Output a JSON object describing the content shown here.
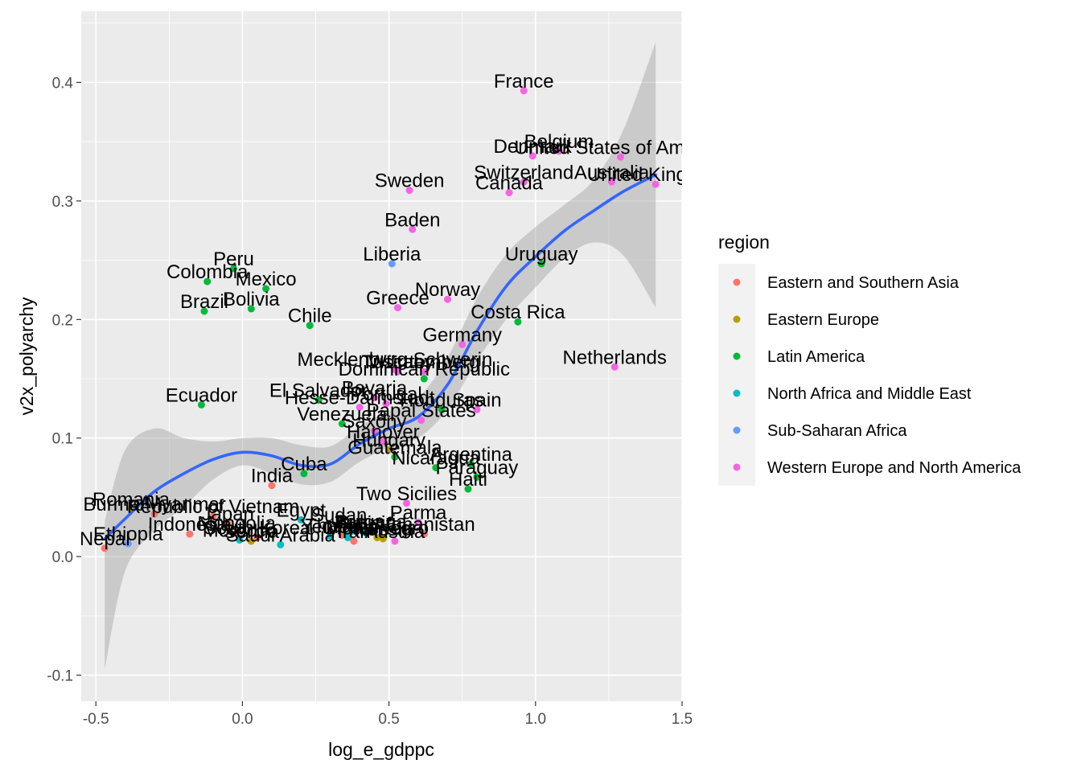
{
  "chart_data": {
    "type": "scatter",
    "xlabel": "log_e_gdppc",
    "ylabel": "v2x_polyarchy",
    "xlim": [
      -0.55,
      1.5
    ],
    "ylim": [
      -0.122,
      0.46
    ],
    "x_ticks": [
      -0.5,
      0.0,
      0.5,
      1.0,
      1.5
    ],
    "x_tick_labels": [
      "-0.5",
      "0.0",
      "0.5",
      "1.0",
      "1.5"
    ],
    "y_ticks": [
      -0.1,
      0.0,
      0.1,
      0.2,
      0.3,
      0.4
    ],
    "y_tick_labels": [
      "-0.1",
      "0.0",
      "0.1",
      "0.2",
      "0.3",
      "0.4"
    ],
    "grid": true,
    "legend_position": "right",
    "legend": {
      "title": "region",
      "entries": [
        {
          "name": "Eastern and Southern Asia",
          "color": "#F8766D"
        },
        {
          "name": "Eastern Europe",
          "color": "#B79F00"
        },
        {
          "name": "Latin America",
          "color": "#00BA38"
        },
        {
          "name": "North Africa and Middle East",
          "color": "#00BFC4"
        },
        {
          "name": "Sub-Saharan Africa",
          "color": "#619CFF"
        },
        {
          "name": "Western Europe and North America",
          "color": "#F564E3"
        }
      ]
    },
    "smooth": {
      "method": "loess",
      "color": "#3366FF",
      "x": [
        -0.47,
        -0.4,
        -0.3,
        -0.2,
        -0.1,
        0.0,
        0.1,
        0.2,
        0.3,
        0.4,
        0.5,
        0.6,
        0.7,
        0.8,
        0.9,
        1.0,
        1.1,
        1.2,
        1.3,
        1.41
      ],
      "y": [
        0.015,
        0.032,
        0.055,
        0.07,
        0.082,
        0.088,
        0.085,
        0.077,
        0.078,
        0.095,
        0.108,
        0.118,
        0.145,
        0.19,
        0.228,
        0.253,
        0.275,
        0.292,
        0.308,
        0.322
      ],
      "upper": [
        0.03,
        0.09,
        0.108,
        0.1,
        0.097,
        0.1,
        0.1,
        0.094,
        0.093,
        0.11,
        0.123,
        0.134,
        0.168,
        0.218,
        0.255,
        0.278,
        0.297,
        0.318,
        0.36,
        0.434
      ],
      "lower": [
        -0.095,
        -0.012,
        0.022,
        0.042,
        0.065,
        0.077,
        0.07,
        0.061,
        0.063,
        0.08,
        0.092,
        0.1,
        0.124,
        0.165,
        0.2,
        0.227,
        0.252,
        0.265,
        0.254,
        0.21
      ]
    },
    "points": [
      {
        "label": "France",
        "x": 0.96,
        "y": 0.393,
        "region": 5
      },
      {
        "label": "Belgium",
        "x": 1.08,
        "y": 0.342,
        "region": 5
      },
      {
        "label": "Denmark",
        "x": 0.99,
        "y": 0.338,
        "region": 5
      },
      {
        "label": "United States of America",
        "x": 1.29,
        "y": 0.337,
        "region": 5
      },
      {
        "label": "Switzerland",
        "x": 0.96,
        "y": 0.316,
        "region": 5
      },
      {
        "label": "Australia",
        "x": 1.26,
        "y": 0.316,
        "region": 5
      },
      {
        "label": "United Kingdom",
        "x": 1.41,
        "y": 0.314,
        "region": 5
      },
      {
        "label": "Canada",
        "x": 0.91,
        "y": 0.307,
        "region": 5
      },
      {
        "label": "Sweden",
        "x": 0.57,
        "y": 0.309,
        "region": 5
      },
      {
        "label": "Baden",
        "x": 0.58,
        "y": 0.276,
        "region": 5
      },
      {
        "label": "Liberia",
        "x": 0.51,
        "y": 0.247,
        "region": 4
      },
      {
        "label": "Uruguay",
        "x": 1.02,
        "y": 0.247,
        "region": 2
      },
      {
        "label": "Peru",
        "x": -0.03,
        "y": 0.243,
        "region": 2
      },
      {
        "label": "Colombia",
        "x": -0.12,
        "y": 0.232,
        "region": 2
      },
      {
        "label": "Mexico",
        "x": 0.08,
        "y": 0.226,
        "region": 2
      },
      {
        "label": "Norway",
        "x": 0.7,
        "y": 0.217,
        "region": 5
      },
      {
        "label": "Greece",
        "x": 0.53,
        "y": 0.21,
        "region": 5
      },
      {
        "label": "Bolivia",
        "x": 0.03,
        "y": 0.209,
        "region": 2
      },
      {
        "label": "Brazil",
        "x": -0.13,
        "y": 0.207,
        "region": 2
      },
      {
        "label": "Costa Rica",
        "x": 0.94,
        "y": 0.198,
        "region": 2
      },
      {
        "label": "Chile",
        "x": 0.23,
        "y": 0.195,
        "region": 2
      },
      {
        "label": "Germany",
        "x": 0.75,
        "y": 0.179,
        "region": 5
      },
      {
        "label": "Netherlands",
        "x": 1.27,
        "y": 0.16,
        "region": 5
      },
      {
        "label": "Mecklenburg Schwerin",
        "x": 0.52,
        "y": 0.158,
        "region": 5
      },
      {
        "label": "Tuscany",
        "x": 0.53,
        "y": 0.156,
        "region": 5
      },
      {
        "label": "Württemberg",
        "x": 0.62,
        "y": 0.156,
        "region": 5
      },
      {
        "label": "Dominican Republic",
        "x": 0.62,
        "y": 0.15,
        "region": 2
      },
      {
        "label": "Ecuador",
        "x": -0.14,
        "y": 0.128,
        "region": 2
      },
      {
        "label": "El Salvador",
        "x": 0.26,
        "y": 0.132,
        "region": 2
      },
      {
        "label": "Bavaria",
        "x": 0.45,
        "y": 0.134,
        "region": 5
      },
      {
        "label": "Hesse-Darmstadt",
        "x": 0.4,
        "y": 0.126,
        "region": 5
      },
      {
        "label": "Portugal",
        "x": 0.49,
        "y": 0.129,
        "region": 5
      },
      {
        "label": "Honduras",
        "x": 0.68,
        "y": 0.124,
        "region": 2
      },
      {
        "label": "Spain",
        "x": 0.8,
        "y": 0.124,
        "region": 5
      },
      {
        "label": "Papal States",
        "x": 0.61,
        "y": 0.115,
        "region": 5
      },
      {
        "label": "Venezuela",
        "x": 0.34,
        "y": 0.112,
        "region": 2
      },
      {
        "label": "Saxony",
        "x": 0.45,
        "y": 0.106,
        "region": 5
      },
      {
        "label": "Hanover",
        "x": 0.48,
        "y": 0.097,
        "region": 5
      },
      {
        "label": "Hungary",
        "x": 0.5,
        "y": 0.09,
        "region": 1
      },
      {
        "label": "Guatemala",
        "x": 0.52,
        "y": 0.084,
        "region": 2
      },
      {
        "label": "Argentina",
        "x": 0.78,
        "y": 0.078,
        "region": 2
      },
      {
        "label": "Nicaragua",
        "x": 0.66,
        "y": 0.075,
        "region": 2
      },
      {
        "label": "Paraguay",
        "x": 0.8,
        "y": 0.067,
        "region": 2
      },
      {
        "label": "Haiti",
        "x": 0.77,
        "y": 0.057,
        "region": 2
      },
      {
        "label": "Cuba",
        "x": 0.21,
        "y": 0.07,
        "region": 2
      },
      {
        "label": "India",
        "x": 0.1,
        "y": 0.06,
        "region": 0
      },
      {
        "label": "Two Sicilies",
        "x": 0.56,
        "y": 0.045,
        "region": 5
      },
      {
        "label": "Romania",
        "x": -0.38,
        "y": 0.04,
        "region": 1
      },
      {
        "label": "Burma/Myanmar",
        "x": -0.3,
        "y": 0.036,
        "region": 0
      },
      {
        "label": "Republic of Vietnam",
        "x": -0.1,
        "y": 0.034,
        "region": 0
      },
      {
        "label": "Egypt",
        "x": 0.2,
        "y": 0.031,
        "region": 3
      },
      {
        "label": "Sudan",
        "x": 0.33,
        "y": 0.027,
        "region": 3
      },
      {
        "label": "Parma",
        "x": 0.6,
        "y": 0.029,
        "region": 5
      },
      {
        "label": "Afghanistan",
        "x": 0.62,
        "y": 0.019,
        "region": 0
      },
      {
        "label": "Indonesia",
        "x": -0.18,
        "y": 0.019,
        "region": 0
      },
      {
        "label": "Japan",
        "x": -0.05,
        "y": 0.028,
        "region": 0
      },
      {
        "label": "Nepal",
        "x": -0.47,
        "y": 0.007,
        "region": 0
      },
      {
        "label": "Ethiopia",
        "x": -0.39,
        "y": 0.011,
        "region": 4
      },
      {
        "label": "Mongolia",
        "x": -0.02,
        "y": 0.02,
        "region": 0
      },
      {
        "label": "Saudi Arabia",
        "x": 0.13,
        "y": 0.01,
        "region": 3
      },
      {
        "label": "South Korea",
        "x": 0.05,
        "y": 0.016,
        "region": 0
      },
      {
        "label": "Morocco",
        "x": -0.01,
        "y": 0.014,
        "region": 3
      },
      {
        "label": "Serbia",
        "x": 0.03,
        "y": 0.013,
        "region": 1
      },
      {
        "label": "Yemen",
        "x": 0.3,
        "y": 0.017,
        "region": 3
      },
      {
        "label": "Oman",
        "x": 0.36,
        "y": 0.016,
        "region": 3
      },
      {
        "label": "Montenegro",
        "x": 0.46,
        "y": 0.016,
        "region": 1
      },
      {
        "label": "Tunisia",
        "x": 0.42,
        "y": 0.02,
        "region": 3
      },
      {
        "label": "Bulgaria",
        "x": 0.44,
        "y": 0.021,
        "region": 1
      },
      {
        "label": "Iran",
        "x": 0.38,
        "y": 0.013,
        "region": 0
      },
      {
        "label": "Thailand",
        "x": 0.34,
        "y": 0.018,
        "region": 0
      },
      {
        "label": "Iraq",
        "x": 0.37,
        "y": 0.021,
        "region": 3
      },
      {
        "label": "Russia",
        "x": 0.48,
        "y": 0.015,
        "region": 1
      },
      {
        "label": "Austria",
        "x": 0.52,
        "y": 0.013,
        "region": 5
      }
    ]
  }
}
